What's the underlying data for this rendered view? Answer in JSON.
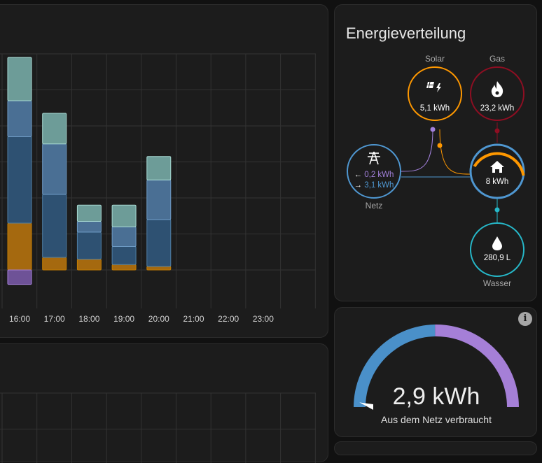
{
  "chart_data": {
    "type": "bar",
    "categories": [
      "16:00",
      "17:00",
      "18:00",
      "19:00",
      "20:00",
      "21:00",
      "22:00",
      "23:00"
    ],
    "ylim": [
      -0.4,
      6.0
    ],
    "grid": true,
    "series": [
      {
        "values": [
          1.3,
          0.35,
          0.3,
          0.15,
          0.1,
          0,
          0,
          0
        ],
        "color": "#c47d00",
        "fill": "#a5690f"
      },
      {
        "values": [
          2.4,
          1.75,
          0.75,
          0.5,
          1.3,
          0,
          0,
          0
        ],
        "color": "#4f7fa6",
        "fill": "#2e5172"
      },
      {
        "values": [
          1.0,
          1.4,
          0.3,
          0.55,
          1.1,
          0,
          0,
          0
        ],
        "color": "#6f9cc6",
        "fill": "#4a6f94"
      },
      {
        "values": [
          1.2,
          0.85,
          0.45,
          0.6,
          0.65,
          0,
          0,
          0
        ],
        "color": "#a8dad3",
        "fill": "#6d9c98"
      },
      {
        "values": [
          -0.4,
          0,
          0,
          0,
          0,
          0,
          0,
          0
        ],
        "color": "#a580d8",
        "fill": "#6e5297"
      }
    ]
  },
  "distribution": {
    "title": "Energieverteilung",
    "solar": {
      "label": "Solar",
      "value": "5,1 kWh",
      "color": "#ff9800"
    },
    "gas": {
      "label": "Gas",
      "value": "23,2 kWh",
      "color": "#8e0e22"
    },
    "grid": {
      "label": "Netz",
      "from_value": "0,2 kWh",
      "to_value": "3,1 kWh",
      "from_color": "#a280db",
      "to_color": "#4f97d1",
      "color": "#4f97d1"
    },
    "home": {
      "value": "8 kWh",
      "color": "#ff9800"
    },
    "water": {
      "label": "Wasser",
      "value": "280,9 L",
      "color": "#26b8c9"
    },
    "icons": {
      "solar": "solar-panel-icon",
      "gas": "flame-icon",
      "grid": "transmission-tower-icon",
      "home": "home-icon",
      "water": "water-drop-icon"
    }
  },
  "gauge": {
    "value": "2,9 kWh",
    "label": "Aus dem Netz verbraucht",
    "fraction": 0.495,
    "left_color": "#4a90c9",
    "right_color": "#a57fd7",
    "info_icon": "i"
  }
}
